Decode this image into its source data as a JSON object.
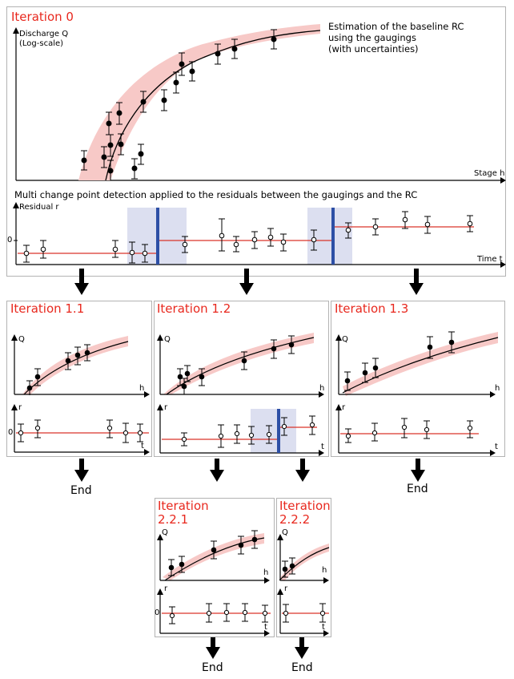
{
  "top": {
    "title": "Iteration 0",
    "description": "Estimation of the baseline RC\nusing the gaugings\n(with uncertainties)",
    "y_label": "Discharge Q\n(Log-scale)",
    "x_label": "Stage h",
    "segmentation_title": "Multi change point detection applied to the residuals between the gaugings and the RC",
    "residual_label": "Residual r",
    "time_label": "Time t",
    "zero_tick": "0"
  },
  "sub": {
    "iter_1_1": {
      "title": "Iteration 1.1",
      "q": "Q",
      "h": "h",
      "r": "r",
      "t": "t",
      "zero": "0"
    },
    "iter_1_2": {
      "title": "Iteration 1.2",
      "q": "Q",
      "h": "h",
      "r": "r",
      "t": "t"
    },
    "iter_1_3": {
      "title": "Iteration 1.3",
      "q": "Q",
      "h": "h",
      "r": "r",
      "t": "t"
    },
    "iter_2_2_1": {
      "title": "Iteration\n2.2.1",
      "q": "Q",
      "h": "h",
      "r": "r",
      "t": "t",
      "zero": "0"
    },
    "iter_2_2_2": {
      "title": "Iteration\n2.2.2",
      "q": "Q",
      "h": "h",
      "r": "r",
      "t": "t"
    }
  },
  "end_label": "End",
  "colors": {
    "title_red": "#e8281e",
    "band": "#f7c9c7",
    "shift_band": "#dcdff0",
    "change_point": "#2d4fa5",
    "zero_line": "#d9342b"
  }
}
